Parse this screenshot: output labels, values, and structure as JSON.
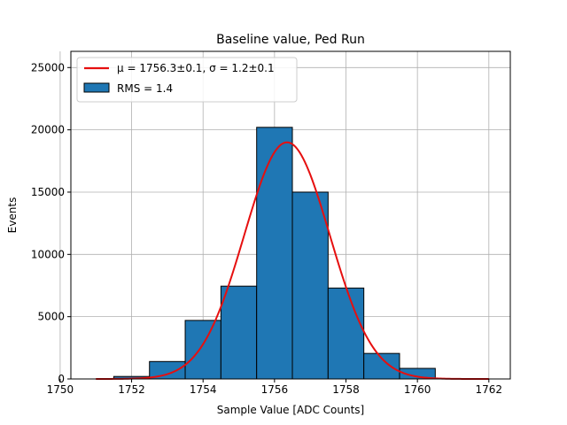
{
  "chart_data": {
    "type": "bar",
    "title": "Baseline value, Ped Run",
    "xlabel": "Sample Value [ADC Counts]",
    "ylabel": "Events",
    "xlim": [
      1750.3,
      1762.6
    ],
    "ylim": [
      0,
      26300
    ],
    "xticks": [
      1750,
      1752,
      1754,
      1756,
      1758,
      1760,
      1762
    ],
    "yticks": [
      0,
      5000,
      10000,
      15000,
      20000,
      25000
    ],
    "grid": true,
    "legend_position": "top-left",
    "histogram": {
      "name": "RMS = 1.4",
      "bin_width": 1,
      "bin_centers": [
        1752,
        1753,
        1754,
        1755,
        1756,
        1757,
        1758,
        1759,
        1760
      ],
      "values": [
        200,
        1400,
        4700,
        7450,
        20200,
        15000,
        7300,
        2050,
        850
      ]
    },
    "fit": {
      "name_prefix": "μ = 1756.3±0.1, ",
      "name_sigma": "σ = 1.2±0.1",
      "mu": 1756.35,
      "sigma": 1.2,
      "amplitude": 19000,
      "x_range": [
        1751,
        1762
      ]
    },
    "colors": {
      "bar_fill": "#1f77b4",
      "bar_edge": "#000000",
      "fit_line": "#e60f0f",
      "grid": "#b0b0b0"
    }
  }
}
